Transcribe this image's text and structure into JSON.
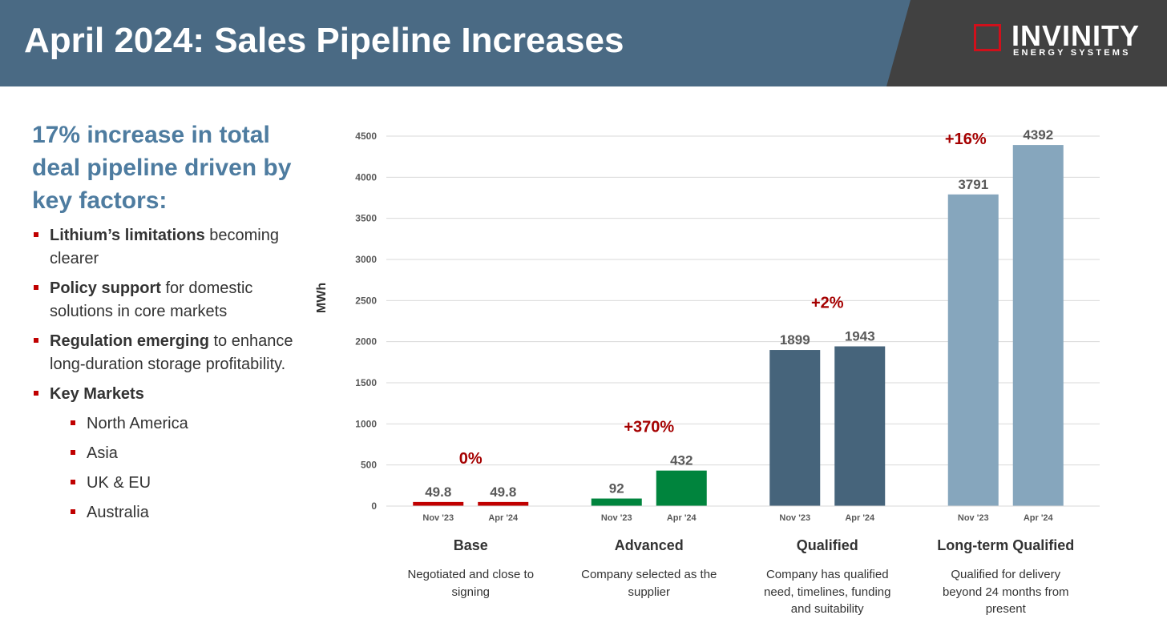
{
  "header": {
    "title": "April 2024: Sales Pipeline Increases",
    "logo_word": "INVINITY",
    "logo_sub": "ENERGY SYSTEMS"
  },
  "sidebar": {
    "headline": "17% increase in total deal pipeline driven by key factors:",
    "bullets": [
      {
        "bold": "Lithium’s limitations",
        "rest": " becoming clearer"
      },
      {
        "bold": "Policy support",
        "rest": " for domestic solutions in core markets"
      },
      {
        "bold": "Regulation emerging",
        "rest": " to enhance long-duration storage profitability."
      },
      {
        "bold": "Key Markets",
        "rest": ""
      }
    ],
    "markets": [
      "North America",
      "Asia",
      "UK & EU",
      "Australia"
    ]
  },
  "colors": {
    "header_bg": "#4a6a84",
    "logo_bg": "#414141",
    "accent_red": "#c00000",
    "base": "#c00000",
    "advanced": "#00843d",
    "qualified": "#46647b",
    "long_term": "#86a6bd"
  },
  "chart_data": {
    "type": "bar",
    "ylabel": "MWh",
    "ylim": [
      0,
      4500
    ],
    "yticks": [
      0,
      500,
      1000,
      1500,
      2000,
      2500,
      3000,
      3500,
      4000,
      4500
    ],
    "grid": true,
    "groups": [
      {
        "name": "Base",
        "description": "Negotiated and close to signing",
        "change": "0%",
        "color": "#c00000",
        "bars": [
          {
            "period": "Nov '23",
            "value": 49.8,
            "label": "49.8"
          },
          {
            "period": "Apr '24",
            "value": 49.8,
            "label": "49.8"
          }
        ]
      },
      {
        "name": "Advanced",
        "description": "Company selected as the supplier",
        "change": "+370%",
        "color": "#00843d",
        "bars": [
          {
            "period": "Nov '23",
            "value": 92,
            "label": "92"
          },
          {
            "period": "Apr '24",
            "value": 432,
            "label": "432"
          }
        ]
      },
      {
        "name": "Qualified",
        "description": "Company has qualified need, timelines, funding and suitability",
        "change": "+2%",
        "color": "#46647b",
        "bars": [
          {
            "period": "Nov '23",
            "value": 1899,
            "label": "1899"
          },
          {
            "period": "Apr '24",
            "value": 1943,
            "label": "1943"
          }
        ]
      },
      {
        "name": "Long-term Qualified",
        "description": "Qualified for delivery beyond 24 months from present",
        "change": "+16%",
        "color": "#86a6bd",
        "bars": [
          {
            "period": "Nov '23",
            "value": 3791,
            "label": "3791"
          },
          {
            "period": "Apr '24",
            "value": 4392,
            "label": "4392"
          }
        ]
      }
    ]
  }
}
